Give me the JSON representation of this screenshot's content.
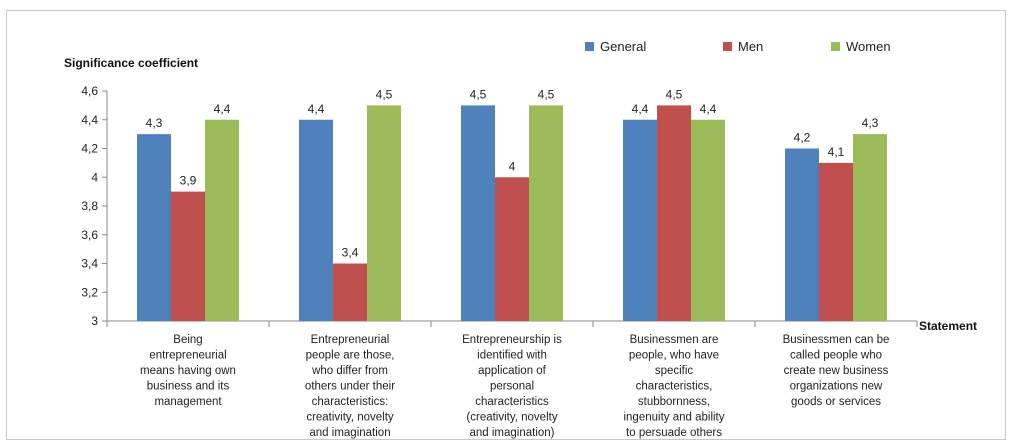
{
  "chart_data": {
    "type": "bar",
    "title": "",
    "ylabel": "Significance coefficient",
    "xlabel": "Statement",
    "ylim": [
      3,
      4.6
    ],
    "yticks": [
      "3",
      "3,2",
      "3,4",
      "3,6",
      "3,8",
      "4",
      "4,2",
      "4,4",
      "4,6"
    ],
    "ytick_values": [
      3,
      3.2,
      3.4,
      3.6,
      3.8,
      4,
      4.2,
      4.4,
      4.6
    ],
    "grid": false,
    "legend_position": "top-right",
    "categories": [
      [
        "Being",
        "entrepreneurial",
        "means having own",
        "business and its",
        "management"
      ],
      [
        "Entrepreneurial",
        "people are those,",
        "who differ from",
        "others under their",
        "characteristics:",
        "creativity, novelty",
        "and imagination"
      ],
      [
        "Entrepreneurship is",
        "identified with",
        "application of",
        "personal",
        "characteristics",
        "(creativity, novelty",
        "and imagination)"
      ],
      [
        "Businessmen are",
        "people, who have",
        "specific",
        "characteristics,",
        "stubbornness,",
        "ingenuity and ability",
        "to persuade others"
      ],
      [
        "Businessmen can be",
        "called people who",
        "create new business",
        "organizations new",
        "goods or services"
      ]
    ],
    "series": [
      {
        "name": "General",
        "color": "#4F81BD",
        "values": [
          4.3,
          4.4,
          4.5,
          4.4,
          4.2
        ],
        "labels": [
          "4,3",
          "4,4",
          "4,5",
          "4,4",
          "4,2"
        ]
      },
      {
        "name": "Men",
        "color": "#C0504D",
        "values": [
          3.9,
          3.4,
          4.0,
          4.5,
          4.1
        ],
        "labels": [
          "3,9",
          "3,4",
          "4",
          "4,5",
          "4,1"
        ]
      },
      {
        "name": "Women",
        "color": "#9BBB59",
        "values": [
          4.4,
          4.5,
          4.5,
          4.4,
          4.3
        ],
        "labels": [
          "4,4",
          "4,5",
          "4,5",
          "4,4",
          "4,3"
        ]
      }
    ]
  }
}
